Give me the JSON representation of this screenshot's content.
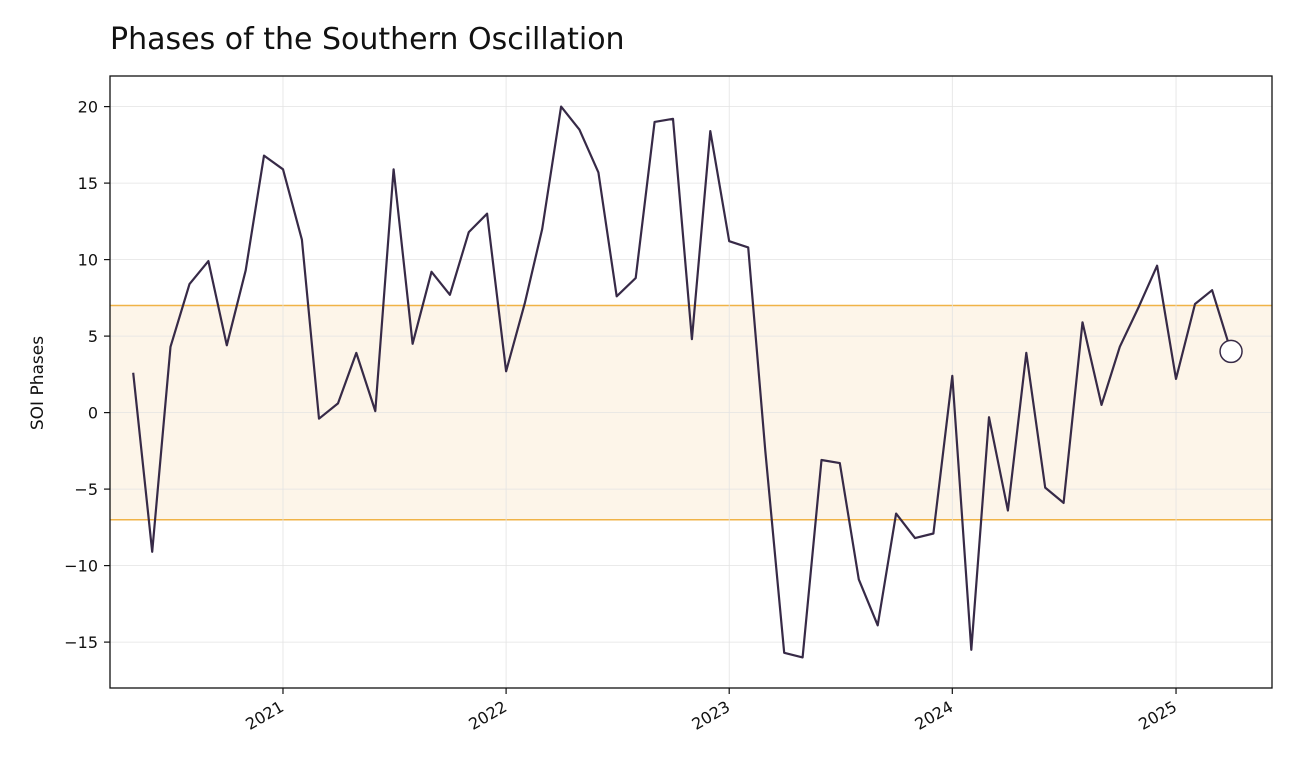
{
  "chart_data": {
    "type": "line",
    "title": "Phases of the Southern Oscillation",
    "xlabel": "",
    "ylabel": "SOI Phases",
    "ylim": [
      -18,
      22
    ],
    "xlim": [
      "2020-03-24",
      "2025-06-07"
    ],
    "y_ticks": [
      20,
      15,
      10,
      5,
      0,
      -5,
      -10,
      -15
    ],
    "y_tick_labels": [
      "20",
      "15",
      "10",
      "5",
      "0",
      "−5",
      "−10",
      "−15"
    ],
    "x_ticks": [
      "2021-01-01",
      "2022-01-01",
      "2023-01-01",
      "2024-01-01",
      "2025-01-01"
    ],
    "x_tick_labels": [
      "2021",
      "2022",
      "2023",
      "2024",
      "2025"
    ],
    "grid": true,
    "neutral_band": {
      "low": -7,
      "high": 7,
      "fill": "#fdf5e9",
      "line": "#f0b347"
    },
    "line_color": "#372a47",
    "series": [
      {
        "x": [
          "2020-05-01",
          "2020-06-01",
          "2020-07-01",
          "2020-08-01",
          "2020-09-01",
          "2020-10-01",
          "2020-11-01",
          "2020-12-01",
          "2021-01-01",
          "2021-02-01",
          "2021-03-01",
          "2021-04-01",
          "2021-05-01",
          "2021-06-01",
          "2021-07-01",
          "2021-08-01",
          "2021-09-01",
          "2021-10-01",
          "2021-11-01",
          "2021-12-01",
          "2022-01-01",
          "2022-02-01",
          "2022-03-01",
          "2022-04-01",
          "2022-05-01",
          "2022-06-01",
          "2022-07-01",
          "2022-08-01",
          "2022-09-01",
          "2022-10-01",
          "2022-11-01",
          "2022-12-01",
          "2023-01-01",
          "2023-02-01",
          "2023-03-01",
          "2023-04-01",
          "2023-05-01",
          "2023-06-01",
          "2023-07-01",
          "2023-08-01",
          "2023-09-01",
          "2023-10-01",
          "2023-11-01",
          "2023-12-01",
          "2024-01-01",
          "2024-02-01",
          "2024-03-01",
          "2024-04-01",
          "2024-05-01",
          "2024-06-01",
          "2024-07-01",
          "2024-08-01",
          "2024-09-01",
          "2024-10-01",
          "2024-11-01",
          "2024-12-01",
          "2025-01-01",
          "2025-02-01",
          "2025-03-01",
          "2025-04-01"
        ],
        "values": [
          2.6,
          -9.1,
          4.3,
          8.4,
          9.9,
          4.4,
          9.3,
          16.8,
          15.9,
          11.3,
          -0.4,
          0.6,
          3.9,
          0.1,
          15.9,
          4.5,
          9.2,
          7.7,
          11.8,
          13.0,
          2.7,
          7.2,
          12.0,
          20.0,
          18.5,
          15.7,
          7.6,
          8.8,
          19.0,
          19.2,
          4.8,
          18.4,
          11.2,
          10.8,
          -2.5,
          -15.7,
          -16.0,
          -3.1,
          -3.3,
          -10.9,
          -13.9,
          -6.6,
          -8.2,
          -7.9,
          2.4,
          -15.5,
          -0.3,
          -6.4,
          3.9,
          -4.9,
          -5.9,
          5.9,
          0.5,
          4.3,
          6.9,
          9.6,
          2.2,
          7.1,
          8.0,
          4.0
        ]
      }
    ],
    "marker": {
      "x": "2025-04-01",
      "y": 4.0
    }
  }
}
